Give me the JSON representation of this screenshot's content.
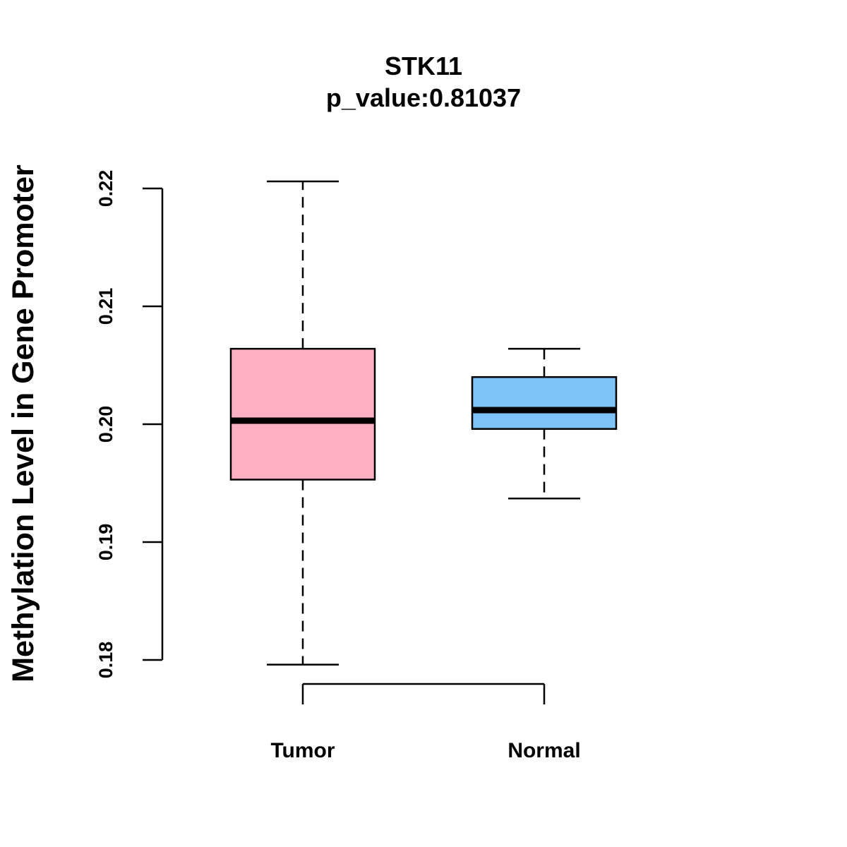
{
  "chart_data": {
    "type": "boxplot",
    "title": "STK11",
    "subtitle": "p_value:0.81037",
    "xlabel": "",
    "ylabel": "Methylation Level in Gene Promoter",
    "ylim": [
      0.18,
      0.22
    ],
    "yticks": [
      0.18,
      0.19,
      0.2,
      0.21,
      0.22
    ],
    "ytick_labels": [
      "0.18",
      "0.19",
      "0.20",
      "0.21",
      "0.22"
    ],
    "grid": false,
    "categories": [
      "Tumor",
      "Normal"
    ],
    "boxes": [
      {
        "category": "Tumor",
        "whisker_low": 0.1796,
        "q1": 0.1953,
        "median": 0.2003,
        "q3": 0.2064,
        "whisker_high": 0.2206,
        "color": "#FFB0C2"
      },
      {
        "category": "Normal",
        "whisker_low": 0.1937,
        "q1": 0.1996,
        "median": 0.2012,
        "q3": 0.204,
        "whisker_high": 0.2064,
        "color": "#7DC3F7"
      }
    ]
  }
}
